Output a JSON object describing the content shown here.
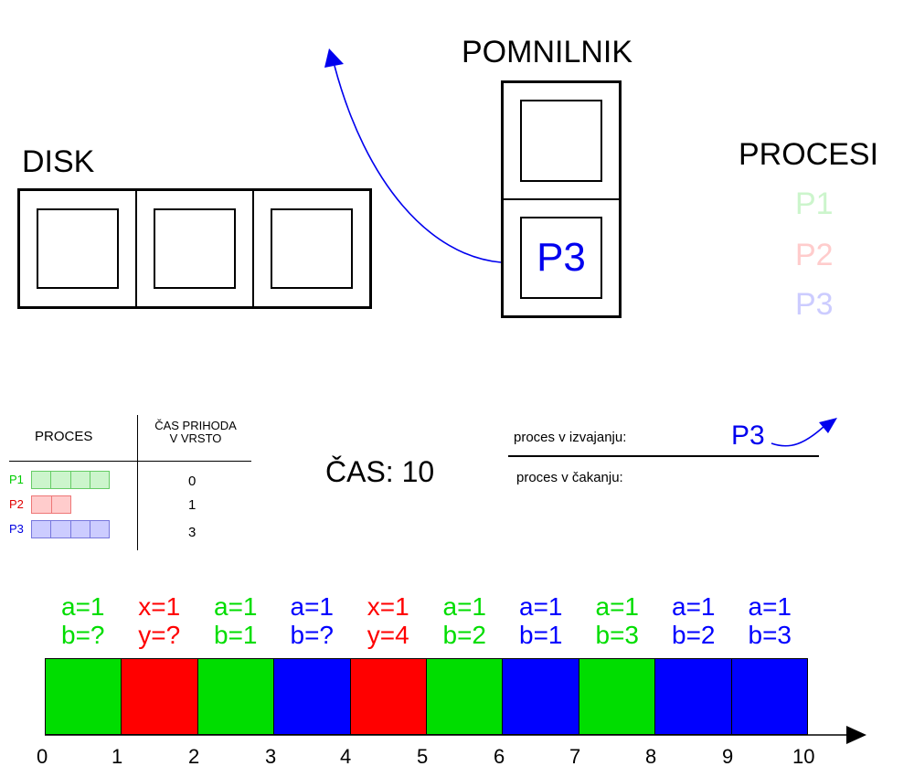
{
  "memory": {
    "title": "POMNILNIK",
    "slots": [
      "",
      "P3"
    ]
  },
  "disk": {
    "title": "DISK",
    "slots": [
      "",
      "",
      ""
    ]
  },
  "processes_legend": {
    "title": "PROCESI",
    "items": [
      {
        "label": "P1",
        "color": "#ccf5cc"
      },
      {
        "label": "P2",
        "color": "#ffcccc"
      },
      {
        "label": "P3",
        "color": "#ccccff"
      }
    ]
  },
  "process_table": {
    "col_process": "PROCES",
    "col_arrival": "ČAS PRIHODA\nV VRSTO",
    "rows": [
      {
        "name": "P1",
        "color": "#00cc00",
        "fill": "#ccf5cc",
        "border": "#66cc66",
        "blocks": 4,
        "arrival": "0"
      },
      {
        "name": "P2",
        "color": "#e00000",
        "fill": "#ffcccc",
        "border": "#ee7777",
        "blocks": 2,
        "arrival": "1"
      },
      {
        "name": "P3",
        "color": "#0000e0",
        "fill": "#ccccff",
        "border": "#7777dd",
        "blocks": 4,
        "arrival": "3"
      }
    ]
  },
  "clock": {
    "text": "ČAS: 10"
  },
  "scheduler": {
    "running_label": "proces v izvajanju:",
    "running_value": "P3",
    "waiting_label": "proces v čakanju:",
    "waiting_value": ""
  },
  "timeline": {
    "operations": [
      {
        "line1": "a=1",
        "line2": "b=?",
        "color": "#00dd00"
      },
      {
        "line1": "x=1",
        "line2": "y=?",
        "color": "#ff0000"
      },
      {
        "line1": "a=1",
        "line2": "b=1",
        "color": "#00dd00"
      },
      {
        "line1": "a=1",
        "line2": "b=?",
        "color": "#0000ff"
      },
      {
        "line1": "x=1",
        "line2": "y=4",
        "color": "#ff0000"
      },
      {
        "line1": "a=1",
        "line2": "b=2",
        "color": "#00dd00"
      },
      {
        "line1": "a=1",
        "line2": "b=1",
        "color": "#0000ff"
      },
      {
        "line1": "a=1",
        "line2": "b=3",
        "color": "#00dd00"
      },
      {
        "line1": "a=1",
        "line2": "b=2",
        "color": "#0000ff"
      },
      {
        "line1": "a=1",
        "line2": "b=3",
        "color": "#0000ff"
      }
    ],
    "ticks": [
      "0",
      "1",
      "2",
      "3",
      "4",
      "5",
      "6",
      "7",
      "8",
      "9",
      "10"
    ]
  }
}
